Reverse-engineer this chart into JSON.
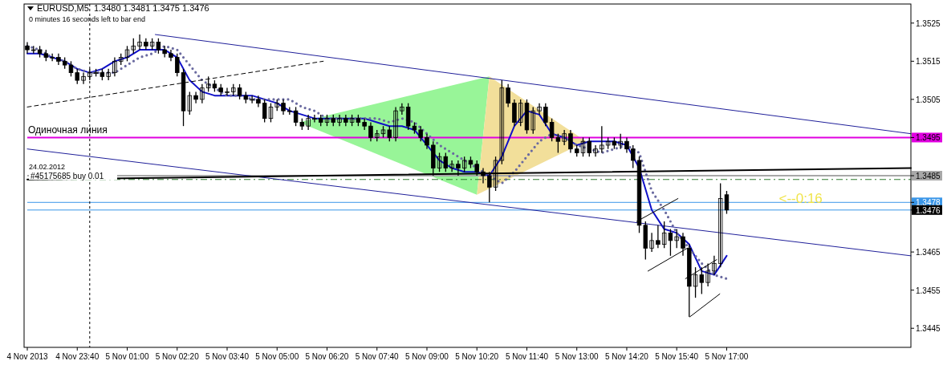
{
  "chart_data": {
    "type": "candlestick",
    "title": "EURUSD,M5  1.3480 1.3481 1.3475 1.3476",
    "subtitle": "0 minutes 16 seconds left to bar end",
    "x": [
      "2013-11-04T22:20",
      "2013-11-04T22:30",
      "2013-11-04T22:40",
      "2013-11-04T22:50",
      "2013-11-04T23:00",
      "2013-11-04T23:10",
      "2013-11-04T23:20",
      "2013-11-04T23:30",
      "2013-11-04T23:40",
      "2013-11-04T23:50",
      "2013-11-05T00:00",
      "2013-11-05T00:10",
      "2013-11-05T00:20",
      "2013-11-05T00:30",
      "2013-11-05T00:40",
      "2013-11-05T00:50",
      "2013-11-05T01:00",
      "2013-11-05T01:10",
      "2013-11-05T01:20",
      "2013-11-05T01:30",
      "2013-11-05T01:40",
      "2013-11-05T01:50",
      "2013-11-05T02:00",
      "2013-11-05T02:10",
      "2013-11-05T02:20",
      "2013-11-05T02:30",
      "2013-11-05T02:40",
      "2013-11-05T02:50",
      "2013-11-05T03:00",
      "2013-11-05T03:10",
      "2013-11-05T03:20",
      "2013-11-05T03:30",
      "2013-11-05T03:40",
      "2013-11-05T03:50",
      "2013-11-05T04:00",
      "2013-11-05T04:10",
      "2013-11-05T04:20",
      "2013-11-05T04:30",
      "2013-11-05T04:40",
      "2013-11-05T04:50",
      "2013-11-05T05:00",
      "2013-11-05T05:10",
      "2013-11-05T05:20",
      "2013-11-05T05:30",
      "2013-11-05T05:40",
      "2013-11-05T05:50",
      "2013-11-05T06:00",
      "2013-11-05T06:10",
      "2013-11-05T06:20",
      "2013-11-05T06:30",
      "2013-11-05T06:40",
      "2013-11-05T06:50",
      "2013-11-05T07:00",
      "2013-11-05T07:10",
      "2013-11-05T07:20",
      "2013-11-05T07:30",
      "2013-11-05T07:40",
      "2013-11-05T07:50",
      "2013-11-05T08:00",
      "2013-11-05T08:10",
      "2013-11-05T08:20",
      "2013-11-05T08:30",
      "2013-11-05T08:40",
      "2013-11-05T08:50",
      "2013-11-05T09:00",
      "2013-11-05T09:10",
      "2013-11-05T09:20",
      "2013-11-05T09:30",
      "2013-11-05T09:40",
      "2013-11-05T09:50",
      "2013-11-05T10:00",
      "2013-11-05T10:10",
      "2013-11-05T10:20",
      "2013-11-05T10:30",
      "2013-11-05T10:40",
      "2013-11-05T10:50",
      "2013-11-05T11:00",
      "2013-11-05T11:10",
      "2013-11-05T11:20",
      "2013-11-05T11:30",
      "2013-11-05T11:40",
      "2013-11-05T11:50",
      "2013-11-05T12:00",
      "2013-11-05T12:10",
      "2013-11-05T12:20",
      "2013-11-05T12:30",
      "2013-11-05T12:40",
      "2013-11-05T12:50",
      "2013-11-05T13:00",
      "2013-11-05T13:10",
      "2013-11-05T13:20",
      "2013-11-05T13:30",
      "2013-11-05T13:40",
      "2013-11-05T13:50",
      "2013-11-05T14:00",
      "2013-11-05T14:10",
      "2013-11-05T14:20",
      "2013-11-05T14:30",
      "2013-11-05T14:40",
      "2013-11-05T14:50",
      "2013-11-05T15:00",
      "2013-11-05T15:10",
      "2013-11-05T15:20",
      "2013-11-05T15:30",
      "2013-11-05T15:40",
      "2013-11-05T15:50",
      "2013-11-05T16:00",
      "2013-11-05T16:10",
      "2013-11-05T16:20",
      "2013-11-05T16:30",
      "2013-11-05T16:40",
      "2013-11-05T16:50",
      "2013-11-05T17:00"
    ],
    "ohlc": [
      [
        1.3519,
        1.352,
        1.3517,
        1.3518
      ],
      [
        1.3518,
        1.3519,
        1.3517,
        1.3518
      ],
      [
        1.3518,
        1.3519,
        1.3516,
        1.3517
      ],
      [
        1.3517,
        1.3518,
        1.3515,
        1.3516
      ],
      [
        1.3516,
        1.3517,
        1.3515,
        1.3516
      ],
      [
        1.3516,
        1.3517,
        1.3514,
        1.3515
      ],
      [
        1.3515,
        1.3516,
        1.3513,
        1.3514
      ],
      [
        1.3514,
        1.3515,
        1.3511,
        1.3512
      ],
      [
        1.3512,
        1.3513,
        1.3509,
        1.351
      ],
      [
        1.351,
        1.3512,
        1.3509,
        1.3511
      ],
      [
        1.3511,
        1.3513,
        1.351,
        1.3512
      ],
      [
        1.3512,
        1.3513,
        1.3511,
        1.3512
      ],
      [
        1.3512,
        1.3513,
        1.351,
        1.3511
      ],
      [
        1.3511,
        1.3513,
        1.351,
        1.3512
      ],
      [
        1.3512,
        1.3516,
        1.3511,
        1.3515
      ],
      [
        1.3515,
        1.3517,
        1.3514,
        1.3516
      ],
      [
        1.3516,
        1.3519,
        1.3515,
        1.3518
      ],
      [
        1.3518,
        1.3521,
        1.3517,
        1.3519
      ],
      [
        1.3519,
        1.3522,
        1.3518,
        1.352
      ],
      [
        1.352,
        1.3521,
        1.3518,
        1.3519
      ],
      [
        1.3519,
        1.3521,
        1.3518,
        1.352
      ],
      [
        1.352,
        1.3521,
        1.3517,
        1.3518
      ],
      [
        1.3518,
        1.3519,
        1.3516,
        1.3517
      ],
      [
        1.3517,
        1.3518,
        1.3515,
        1.3516
      ],
      [
        1.3516,
        1.3517,
        1.3511,
        1.3512
      ],
      [
        1.3512,
        1.3513,
        1.3498,
        1.3502
      ],
      [
        1.3502,
        1.3507,
        1.3501,
        1.3506
      ],
      [
        1.3506,
        1.3507,
        1.3504,
        1.3505
      ],
      [
        1.3505,
        1.3509,
        1.3504,
        1.3508
      ],
      [
        1.3508,
        1.3511,
        1.3507,
        1.3509
      ],
      [
        1.3509,
        1.351,
        1.3507,
        1.3508
      ],
      [
        1.3508,
        1.3509,
        1.3506,
        1.3507
      ],
      [
        1.3507,
        1.3508,
        1.3506,
        1.3507
      ],
      [
        1.3507,
        1.3509,
        1.3506,
        1.3508
      ],
      [
        1.3508,
        1.3509,
        1.3505,
        1.3506
      ],
      [
        1.3506,
        1.3507,
        1.3504,
        1.3505
      ],
      [
        1.3505,
        1.3506,
        1.3504,
        1.3505
      ],
      [
        1.3505,
        1.3506,
        1.3503,
        1.3504
      ],
      [
        1.3504,
        1.3505,
        1.3499,
        1.35
      ],
      [
        1.35,
        1.3504,
        1.3499,
        1.3503
      ],
      [
        1.3503,
        1.3505,
        1.3502,
        1.3504
      ],
      [
        1.3504,
        1.3505,
        1.3501,
        1.3502
      ],
      [
        1.3502,
        1.3503,
        1.3501,
        1.3502
      ],
      [
        1.3502,
        1.3503,
        1.3498,
        1.3499
      ],
      [
        1.3499,
        1.35,
        1.3497,
        1.3498
      ],
      [
        1.3498,
        1.3501,
        1.3497,
        1.35
      ],
      [
        1.35,
        1.3501,
        1.3499,
        1.35
      ],
      [
        1.35,
        1.3501,
        1.3498,
        1.3499
      ],
      [
        1.3499,
        1.3501,
        1.3498,
        1.35
      ],
      [
        1.35,
        1.3501,
        1.3498,
        1.3499
      ],
      [
        1.3499,
        1.3501,
        1.3498,
        1.35
      ],
      [
        1.35,
        1.3501,
        1.3498,
        1.3499
      ],
      [
        1.3499,
        1.3501,
        1.3498,
        1.35
      ],
      [
        1.35,
        1.3501,
        1.3498,
        1.3499
      ],
      [
        1.3499,
        1.35,
        1.3497,
        1.3498
      ],
      [
        1.3498,
        1.3499,
        1.3494,
        1.3495
      ],
      [
        1.3495,
        1.3497,
        1.3494,
        1.3496
      ],
      [
        1.3496,
        1.3498,
        1.3495,
        1.3497
      ],
      [
        1.3497,
        1.3498,
        1.3494,
        1.3495
      ],
      [
        1.3495,
        1.3503,
        1.3494,
        1.3502
      ],
      [
        1.3502,
        1.3504,
        1.3501,
        1.3503
      ],
      [
        1.3503,
        1.3504,
        1.3497,
        1.3498
      ],
      [
        1.3498,
        1.3499,
        1.3496,
        1.3497
      ],
      [
        1.3497,
        1.3498,
        1.3494,
        1.3495
      ],
      [
        1.3495,
        1.3496,
        1.3492,
        1.3493
      ],
      [
        1.3493,
        1.3494,
        1.3485,
        1.3487
      ],
      [
        1.3487,
        1.3491,
        1.3486,
        1.349
      ],
      [
        1.349,
        1.3491,
        1.3486,
        1.3487
      ],
      [
        1.3487,
        1.3489,
        1.3486,
        1.3488
      ],
      [
        1.3488,
        1.3489,
        1.3485,
        1.3487
      ],
      [
        1.3487,
        1.349,
        1.3486,
        1.3489
      ],
      [
        1.3489,
        1.349,
        1.3487,
        1.3488
      ],
      [
        1.3488,
        1.3489,
        1.3485,
        1.3486
      ],
      [
        1.3486,
        1.3487,
        1.3483,
        1.3485
      ],
      [
        1.3485,
        1.3486,
        1.3478,
        1.3482
      ],
      [
        1.3482,
        1.349,
        1.3481,
        1.3489
      ],
      [
        1.3489,
        1.351,
        1.3488,
        1.3508
      ],
      [
        1.3508,
        1.3509,
        1.3503,
        1.3504
      ],
      [
        1.3504,
        1.3505,
        1.3498,
        1.3499
      ],
      [
        1.3499,
        1.3505,
        1.3498,
        1.3504
      ],
      [
        1.3504,
        1.3505,
        1.3496,
        1.3497
      ],
      [
        1.3497,
        1.3503,
        1.3496,
        1.3502
      ],
      [
        1.3502,
        1.3504,
        1.3501,
        1.3503
      ],
      [
        1.3503,
        1.3504,
        1.3498,
        1.3499
      ],
      [
        1.3499,
        1.35,
        1.3494,
        1.3495
      ],
      [
        1.3495,
        1.3496,
        1.3491,
        1.3494
      ],
      [
        1.3494,
        1.3497,
        1.3493,
        1.3496
      ],
      [
        1.3496,
        1.3497,
        1.3491,
        1.3492
      ],
      [
        1.3492,
        1.3493,
        1.349,
        1.3491
      ],
      [
        1.3491,
        1.3495,
        1.349,
        1.3494
      ],
      [
        1.3494,
        1.3495,
        1.349,
        1.3491
      ],
      [
        1.3491,
        1.3493,
        1.349,
        1.3492
      ],
      [
        1.3492,
        1.3498,
        1.3491,
        1.3493
      ],
      [
        1.3493,
        1.3495,
        1.3492,
        1.3494
      ],
      [
        1.3494,
        1.3495,
        1.3492,
        1.3493
      ],
      [
        1.3493,
        1.3496,
        1.3492,
        1.3494
      ],
      [
        1.3494,
        1.3495,
        1.3491,
        1.3492
      ],
      [
        1.3492,
        1.3493,
        1.3487,
        1.3489
      ],
      [
        1.3489,
        1.349,
        1.347,
        1.3472
      ],
      [
        1.3472,
        1.3473,
        1.3463,
        1.3466
      ],
      [
        1.3466,
        1.347,
        1.3465,
        1.3468
      ],
      [
        1.3468,
        1.3472,
        1.3466,
        1.3467
      ],
      [
        1.3467,
        1.3473,
        1.3466,
        1.347
      ],
      [
        1.347,
        1.3471,
        1.3464,
        1.3468
      ],
      [
        1.3468,
        1.3471,
        1.3466,
        1.3469
      ],
      [
        1.3469,
        1.347,
        1.3464,
        1.3466
      ],
      [
        1.3466,
        1.3467,
        1.3448,
        1.3456
      ],
      [
        1.3456,
        1.3461,
        1.3453,
        1.3459
      ],
      [
        1.3459,
        1.3461,
        1.3454,
        1.3457
      ],
      [
        1.3457,
        1.3462,
        1.3456,
        1.346
      ],
      [
        1.346,
        1.3464,
        1.3459,
        1.3462
      ],
      [
        1.3462,
        1.3483,
        1.3461,
        1.3479
      ],
      [
        1.348,
        1.3481,
        1.3475,
        1.3476
      ]
    ],
    "xlim": [
      "2013-11-04T22:20",
      "2013-11-05T21:55"
    ],
    "ylim": [
      1.344,
      1.353
    ],
    "xticks": [
      {
        "value": "2013-11-04T22:20",
        "label": "4 Nov 2013"
      },
      {
        "value": "2013-11-04T23:40",
        "label": "4 Nov 23:40"
      },
      {
        "value": "2013-11-05T01:00",
        "label": "5 Nov 01:00"
      },
      {
        "value": "2013-11-05T02:20",
        "label": "5 Nov 02:20"
      },
      {
        "value": "2013-11-05T03:40",
        "label": "5 Nov 03:40"
      },
      {
        "value": "2013-11-05T05:00",
        "label": "5 Nov 05:00"
      },
      {
        "value": "2013-11-05T06:20",
        "label": "5 Nov 06:20"
      },
      {
        "value": "2013-11-05T07:40",
        "label": "5 Nov 07:40"
      },
      {
        "value": "2013-11-05T09:00",
        "label": "5 Nov 09:00"
      },
      {
        "value": "2013-11-05T10:20",
        "label": "5 Nov 10:20"
      },
      {
        "value": "2013-11-05T11:40",
        "label": "5 Nov 11:40"
      },
      {
        "value": "2013-11-05T13:00",
        "label": "5 Nov 13:00"
      },
      {
        "value": "2013-11-05T14:20",
        "label": "5 Nov 14:20"
      },
      {
        "value": "2013-11-05T15:40",
        "label": "5 Nov 15:40"
      },
      {
        "value": "2013-11-05T17:00",
        "label": "5 Nov 17:00"
      }
    ],
    "yticks": [
      1.3525,
      1.3515,
      1.3505,
      1.3495,
      1.3485,
      1.3478,
      1.3476,
      1.3465,
      1.3455,
      1.3445
    ],
    "series": [
      {
        "type": "line",
        "color": "#1010c8",
        "line_style": "solid",
        "x": [
          "2013-11-04T22:20",
          "2013-11-04T22:40",
          "2013-11-04T23:00",
          "2013-11-04T23:20",
          "2013-11-04T23:40",
          "2013-11-05T00:00",
          "2013-11-05T00:20",
          "2013-11-05T00:40",
          "2013-11-05T01:00",
          "2013-11-05T01:20",
          "2013-11-05T01:40",
          "2013-11-05T02:00",
          "2013-11-05T02:20",
          "2013-11-05T02:40",
          "2013-11-05T03:00",
          "2013-11-05T03:20",
          "2013-11-05T03:40",
          "2013-11-05T04:00",
          "2013-11-05T04:20",
          "2013-11-05T04:40",
          "2013-11-05T05:00",
          "2013-11-05T05:20",
          "2013-11-05T05:40",
          "2013-11-05T06:00",
          "2013-11-05T06:20",
          "2013-11-05T06:40",
          "2013-11-05T07:00",
          "2013-11-05T07:20",
          "2013-11-05T07:40",
          "2013-11-05T08:00",
          "2013-11-05T08:20",
          "2013-11-05T08:40",
          "2013-11-05T09:00",
          "2013-11-05T09:20",
          "2013-11-05T09:40",
          "2013-11-05T10:00",
          "2013-11-05T10:20",
          "2013-11-05T10:40",
          "2013-11-05T11:00",
          "2013-11-05T11:20",
          "2013-11-05T11:40",
          "2013-11-05T12:00",
          "2013-11-05T12:20",
          "2013-11-05T12:40",
          "2013-11-05T13:00",
          "2013-11-05T13:20",
          "2013-11-05T13:40",
          "2013-11-05T14:00",
          "2013-11-05T14:20",
          "2013-11-05T14:40",
          "2013-11-05T15:00",
          "2013-11-05T15:20",
          "2013-11-05T15:40",
          "2013-11-05T16:00",
          "2013-11-05T16:20",
          "2013-11-05T16:40",
          "2013-11-05T17:00"
        ],
        "values": [
          1.3517,
          1.3517,
          1.3516,
          1.3515,
          1.3513,
          1.3512,
          1.3513,
          1.3515,
          1.3516,
          1.3518,
          1.3518,
          1.3518,
          1.3516,
          1.351,
          1.3507,
          1.3506,
          1.3506,
          1.3506,
          1.3506,
          1.3505,
          1.3504,
          1.3502,
          1.3501,
          1.35,
          1.35,
          1.35,
          1.35,
          1.35,
          1.3499,
          1.3498,
          1.3498,
          1.3497,
          1.3493,
          1.3489,
          1.3487,
          1.3486,
          1.3486,
          1.3485,
          1.349,
          1.3498,
          1.3502,
          1.3501,
          1.3496,
          1.3495,
          1.3493,
          1.3494,
          1.3494,
          1.3494,
          1.3493,
          1.3487,
          1.3476,
          1.3471,
          1.347,
          1.3467,
          1.346,
          1.3459,
          1.3464
        ]
      },
      {
        "type": "line",
        "color": "#6a6aa0",
        "line_style": "dotted",
        "x": [
          "2013-11-04T22:20",
          "2013-11-04T22:40",
          "2013-11-04T23:00",
          "2013-11-04T23:20",
          "2013-11-04T23:40",
          "2013-11-05T00:00",
          "2013-11-05T00:20",
          "2013-11-05T00:40",
          "2013-11-05T01:00",
          "2013-11-05T01:20",
          "2013-11-05T01:40",
          "2013-11-05T02:00",
          "2013-11-05T02:20",
          "2013-11-05T02:40",
          "2013-11-05T03:00",
          "2013-11-05T03:20",
          "2013-11-05T03:40",
          "2013-11-05T04:00",
          "2013-11-05T04:20",
          "2013-11-05T04:40",
          "2013-11-05T05:00",
          "2013-11-05T05:20",
          "2013-11-05T05:40",
          "2013-11-05T06:00",
          "2013-11-05T06:20",
          "2013-11-05T06:40",
          "2013-11-05T07:00",
          "2013-11-05T07:20",
          "2013-11-05T07:40",
          "2013-11-05T08:00",
          "2013-11-05T08:20",
          "2013-11-05T08:40",
          "2013-11-05T09:00",
          "2013-11-05T09:20",
          "2013-11-05T09:40",
          "2013-11-05T10:00",
          "2013-11-05T10:20",
          "2013-11-05T10:40",
          "2013-11-05T11:00",
          "2013-11-05T11:20",
          "2013-11-05T11:40",
          "2013-11-05T12:00",
          "2013-11-05T12:20",
          "2013-11-05T12:40",
          "2013-11-05T13:00",
          "2013-11-05T13:20",
          "2013-11-05T13:40",
          "2013-11-05T14:00",
          "2013-11-05T14:20",
          "2013-11-05T14:40",
          "2013-11-05T15:00",
          "2013-11-05T15:20",
          "2013-11-05T15:40",
          "2013-11-05T16:00",
          "2013-11-05T16:20",
          "2013-11-05T16:40",
          "2013-11-05T17:00"
        ],
        "values": [
          1.3519,
          1.3518,
          1.3516,
          1.3515,
          1.3513,
          1.3512,
          1.3512,
          1.3512,
          1.3514,
          1.3516,
          1.3517,
          1.3519,
          1.3518,
          1.3514,
          1.351,
          1.3508,
          1.3506,
          1.3506,
          1.3505,
          1.3505,
          1.3505,
          1.3505,
          1.3503,
          1.3502,
          1.35,
          1.35,
          1.35,
          1.35,
          1.35,
          1.3499,
          1.35,
          1.3499,
          1.3496,
          1.3493,
          1.3491,
          1.3489,
          1.3487,
          1.3485,
          1.3483,
          1.3486,
          1.349,
          1.3494,
          1.3496,
          1.3495,
          1.3493,
          1.3492,
          1.3491,
          1.3492,
          1.3493,
          1.3491,
          1.3481,
          1.3476,
          1.347,
          1.3466,
          1.3462,
          1.3459,
          1.3458
        ]
      },
      {
        "type": "line",
        "color": "#20209a",
        "line_style": "solid",
        "x": [
          "2013-11-05T01:45",
          "2013-11-05T21:55"
        ],
        "values": [
          1.3522,
          1.3496
        ]
      },
      {
        "type": "line",
        "color": "#20209a",
        "line_style": "solid",
        "x": [
          "2013-11-04T22:20",
          "2013-11-05T21:55"
        ],
        "values": [
          1.3492,
          1.3464
        ]
      },
      {
        "type": "line",
        "color": "#000000",
        "line_style": "solid",
        "x": [
          "2013-11-04T22:20",
          "2013-11-05T21:55"
        ],
        "values": [
          1.3484,
          1.3487
        ]
      },
      {
        "type": "line",
        "color": "#000000",
        "line_style": "dashed",
        "x": [
          "2013-11-04T22:20",
          "2013-11-05T06:14"
        ],
        "values": [
          1.3503,
          1.3515
        ]
      },
      {
        "type": "line",
        "color": "#000000",
        "line_style": "solid",
        "x": [
          "2013-11-05T14:36",
          "2013-11-05T15:42"
        ],
        "values": [
          1.3473,
          1.3479
        ]
      },
      {
        "type": "line",
        "color": "#000000",
        "line_style": "solid",
        "x": [
          "2013-11-05T14:54",
          "2013-11-05T15:57"
        ],
        "values": [
          1.346,
          1.3466
        ]
      },
      {
        "type": "line",
        "color": "#000000",
        "line_style": "solid",
        "x": [
          "2013-11-05T15:54",
          "2013-11-05T16:44"
        ],
        "values": [
          1.3458,
          1.3463
        ]
      },
      {
        "type": "line",
        "color": "#000000",
        "line_style": "solid",
        "x": [
          "2013-11-05T16:01",
          "2013-11-05T16:49"
        ],
        "values": [
          1.3448,
          1.3454
        ]
      }
    ],
    "ref_lines": [
      {
        "axis": "y",
        "value": 1.3495,
        "label": "Одиночная линия",
        "color": "#e000e0",
        "line_style": "solid"
      },
      {
        "axis": "y",
        "value": 1.3485,
        "label": "#45175685 buy 0.01",
        "color": "#a8a8a8",
        "line_style": "solid"
      },
      {
        "axis": "y",
        "value": 1.3484,
        "color": "#2e7d2e",
        "line_style": "dashed"
      },
      {
        "axis": "y",
        "value": 1.3478,
        "color": "#3a96e8",
        "line_style": "solid"
      },
      {
        "axis": "y",
        "value": 1.3476,
        "color": "#3a96e8",
        "line_style": "solid"
      },
      {
        "axis": "x",
        "value": "2013-11-05T00:00",
        "color": "#000000",
        "line_style": "dotted"
      }
    ],
    "annotations": [
      "24.02.2012",
      "<--0:16"
    ]
  }
}
